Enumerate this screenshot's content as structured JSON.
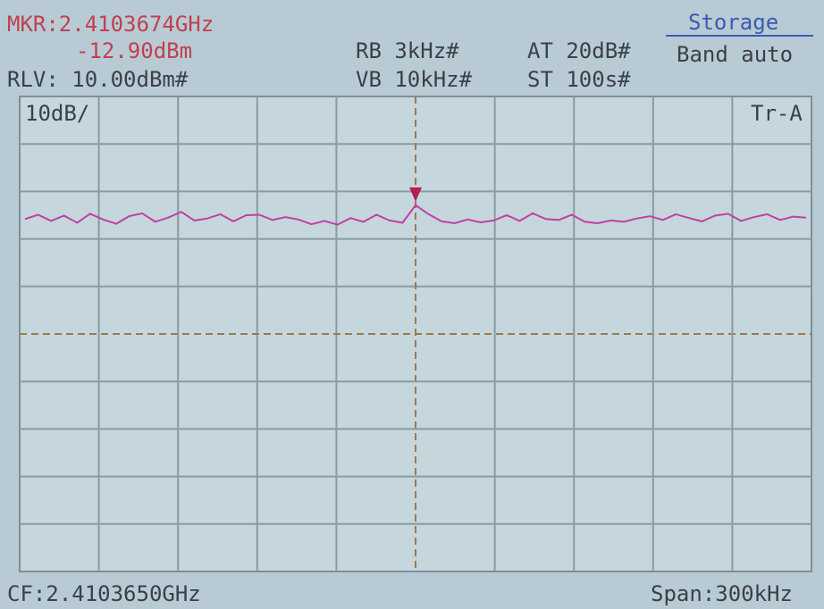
{
  "header": {
    "marker_freq": "MKR:2.4103674GHz",
    "marker_level": {
      "value": -12.9,
      "label": "-12.90dBm"
    },
    "ref_level": "RLV: 10.00dBm#",
    "rbw": "RB 3kHz#",
    "vbw": "VB 10kHz#",
    "atten": "AT 20dB#",
    "sweep": "ST 100s#",
    "menu_title": "Storage",
    "menu_item": "Band auto"
  },
  "screen": {
    "scale": "10dB/",
    "trace_name": "Tr-A"
  },
  "footer": {
    "center": "CF:2.4103650GHz",
    "span": "Span:300kHz"
  },
  "trace": {
    "ylim": [
      -90,
      10
    ],
    "color": "#c040a8",
    "values": [
      -15.8,
      -14.9,
      -16.2,
      -15.1,
      -16.6,
      -14.7,
      -15.9,
      -16.8,
      -15.2,
      -14.6,
      -16.4,
      -15.5,
      -14.3,
      -16.1,
      -15.7,
      -14.8,
      -16.3,
      -15.0,
      -14.9,
      -16.0,
      -15.4,
      -15.9,
      -16.9,
      -16.2,
      -17.0,
      -15.6,
      -16.4,
      -14.9,
      -16.1,
      -16.6,
      -12.9,
      -14.8,
      -16.3,
      -16.7,
      -15.9,
      -16.5,
      -16.1,
      -15.0,
      -16.2,
      -14.6,
      -15.8,
      -16.0,
      -14.9,
      -16.4,
      -16.7,
      -16.1,
      -16.4,
      -15.7,
      -15.2,
      -16.0,
      -14.8,
      -15.6,
      -16.3,
      -15.1,
      -14.7,
      -16.2,
      -15.4,
      -14.8,
      -16.0,
      -15.3,
      -15.5
    ]
  }
}
